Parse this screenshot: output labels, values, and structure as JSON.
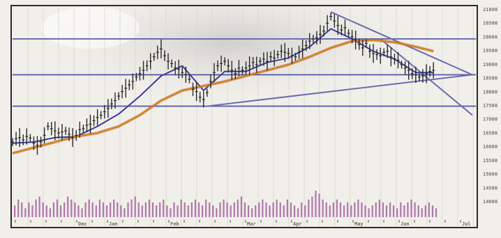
{
  "chart_data": {
    "type": "line",
    "title": "",
    "xlabel": "",
    "ylabel": "",
    "ylim": [
      14000,
      21200
    ],
    "y_axis_side": "right",
    "y_ticks": [
      "21000",
      "20500",
      "20000",
      "19500",
      "19000",
      "18500",
      "18000",
      "17500",
      "17000",
      "16500",
      "16000",
      "15500",
      "15000",
      "14500",
      "14000"
    ],
    "x_ticks": [
      "",
      "",
      "",
      "",
      "Dec",
      "",
      "Jan",
      "",
      "",
      "",
      "Feb",
      "",
      "",
      "",
      "",
      "Mar",
      "",
      "",
      "Apr",
      "",
      "",
      "",
      "May",
      "",
      "",
      "Jun",
      "",
      "",
      "",
      "Jul"
    ],
    "grid": "vertical only",
    "legend": "none",
    "series": [
      {
        "kind": "price_bars",
        "color": "#2a2a2a",
        "x": [
          0,
          1,
          2,
          3,
          4,
          5,
          6,
          7,
          8,
          9,
          10,
          11,
          12,
          13,
          14,
          15,
          16,
          17,
          18,
          19,
          20,
          21,
          22,
          23,
          24,
          25,
          26,
          27,
          28,
          29,
          30,
          31,
          32,
          33,
          34,
          35,
          36,
          37,
          38,
          39,
          40,
          41,
          42,
          43,
          44,
          45,
          46,
          47,
          48,
          49,
          50,
          51,
          52,
          53,
          54,
          55,
          56,
          57,
          58,
          59,
          60,
          61,
          62,
          63,
          64,
          65,
          66,
          67,
          68,
          69,
          70,
          71,
          72,
          73,
          74,
          75,
          76,
          77,
          78,
          79,
          80,
          81,
          82,
          83,
          84,
          85,
          86,
          87,
          88,
          89,
          90,
          91,
          92,
          93,
          94,
          95,
          96,
          97,
          98,
          99,
          100,
          101,
          102,
          103,
          104,
          105,
          106,
          107,
          108,
          109,
          110,
          111,
          112,
          113,
          114,
          115,
          116,
          117,
          118,
          119
        ],
        "values": [
          15300,
          15450,
          15500,
          15400,
          15550,
          15480,
          15250,
          15150,
          15300,
          15600,
          16000,
          15900,
          15800,
          15700,
          15750,
          15800,
          15650,
          15500,
          15600,
          15850,
          15900,
          16050,
          16100,
          16250,
          16400,
          16500,
          16650,
          16800,
          17000,
          17150,
          17350,
          17550,
          17700,
          17850,
          18000,
          18200,
          18350,
          18500,
          18700,
          18900,
          19100,
          19300,
          19450,
          19150,
          18900,
          18800,
          18600,
          18550,
          18400,
          18300,
          18100,
          17650,
          17550,
          17300,
          17200,
          17500,
          18000,
          18400,
          18700,
          18800,
          18900,
          18700,
          18500,
          18350,
          18600,
          18500,
          18600,
          18700,
          18850,
          18750,
          18900,
          19000,
          18900,
          19100,
          19050,
          19200,
          19350,
          19300,
          19250,
          19150,
          19100,
          19300,
          19450,
          19600,
          19800,
          19900,
          19950,
          20100,
          20250,
          20600,
          20900,
          20700,
          20500,
          20300,
          20400,
          20150,
          20000,
          19850,
          19650,
          19500,
          19700,
          19350,
          19250,
          19200,
          19150,
          19300,
          19350,
          19100,
          19000,
          18950,
          18750,
          18600,
          18500,
          18350,
          18300,
          18200,
          18250,
          18350,
          18450,
          18500
        ]
      },
      {
        "kind": "moving_average_short",
        "color": "#3a3d9c",
        "x": [
          0,
          6,
          12,
          18,
          24,
          30,
          36,
          42,
          48,
          54,
          60,
          66,
          72,
          78,
          84,
          90,
          96,
          102,
          108,
          114,
          119
        ],
        "values": [
          15250,
          15300,
          15500,
          15550,
          16000,
          16550,
          17350,
          18250,
          18700,
          17600,
          18450,
          18450,
          18850,
          19050,
          19550,
          20350,
          19900,
          19350,
          19000,
          18400,
          18400
        ]
      },
      {
        "kind": "moving_average_long",
        "color": "#c98a18",
        "x": [
          0,
          6,
          12,
          18,
          24,
          30,
          36,
          42,
          48,
          54,
          60,
          66,
          72,
          78,
          84,
          90,
          96,
          102,
          108,
          114,
          119
        ],
        "values": [
          14800,
          15050,
          15300,
          15550,
          15700,
          16000,
          16500,
          17150,
          17600,
          17800,
          18000,
          18250,
          18500,
          18750,
          19100,
          19500,
          19800,
          19850,
          19750,
          19550,
          19350
        ]
      },
      {
        "kind": "volume",
        "color": "#9a4f98",
        "values": [
          4,
          6,
          5,
          3,
          5,
          4,
          6,
          7,
          5,
          4,
          3,
          5,
          6,
          4,
          5,
          7,
          6,
          5,
          4,
          3,
          5,
          6,
          5,
          4,
          6,
          5,
          4,
          5,
          6,
          5,
          4,
          3,
          5,
          6,
          7,
          5,
          4,
          5,
          6,
          5,
          4,
          5,
          6,
          4,
          3,
          5,
          4,
          6,
          5,
          4,
          5,
          6,
          5,
          4,
          6,
          5,
          4,
          3,
          5,
          6,
          5,
          4,
          5,
          6,
          7,
          5,
          4,
          3,
          4,
          5,
          6,
          5,
          4,
          5,
          6,
          5,
          4,
          6,
          5,
          4,
          3,
          5,
          4,
          6,
          7,
          9,
          8,
          6,
          5,
          4,
          5,
          6,
          5,
          4,
          5,
          4,
          5,
          6,
          5,
          4,
          3,
          4,
          5,
          6,
          5,
          4,
          5,
          4,
          3,
          5,
          4,
          5,
          6,
          5,
          4,
          3,
          4,
          5,
          4,
          3
        ]
      }
    ],
    "annotations": [
      {
        "kind": "horizontal_line",
        "y": 19900,
        "color": "#5b5da8"
      },
      {
        "kind": "horizontal_line",
        "y": 18300,
        "color": "#5b5da8"
      },
      {
        "kind": "horizontal_line",
        "y": 16900,
        "color": "#5b5da8"
      },
      {
        "kind": "trendline",
        "from": [
          55,
          16900
        ],
        "to": [
          130,
          18300
        ],
        "color": "#6a6cb0"
      },
      {
        "kind": "trendline",
        "from": [
          90,
          21100
        ],
        "to": [
          130,
          18300
        ],
        "color": "#6a6cb0"
      },
      {
        "kind": "trendline",
        "from": [
          104,
          19900
        ],
        "to": [
          130,
          16500
        ],
        "color": "#6a6cb0"
      }
    ]
  }
}
